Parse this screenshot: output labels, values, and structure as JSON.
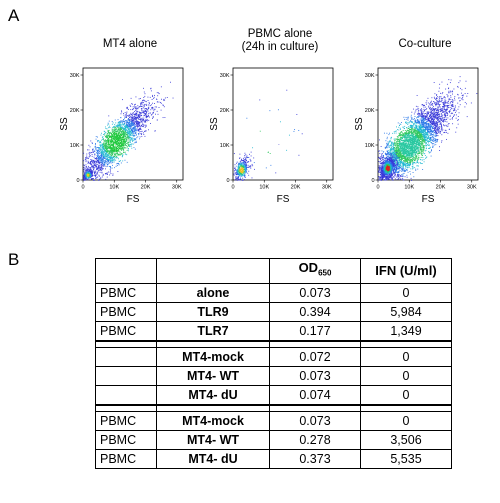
{
  "panelA": {
    "letter": "A",
    "plots": [
      {
        "title_lines": [
          "MT4 alone"
        ],
        "xlabel": "FS",
        "ylabel": "SS"
      },
      {
        "title_lines": [
          "PBMC alone",
          "(24h in culture)"
        ],
        "xlabel": "FS",
        "ylabel": "SS"
      },
      {
        "title_lines": [
          "Co-culture"
        ],
        "xlabel": "FS",
        "ylabel": "SS"
      }
    ]
  },
  "panelB": {
    "letter": "B",
    "header": {
      "col0": "",
      "col1": "",
      "od": "OD",
      "od_sub": "650",
      "ifn": "IFN (U/ml)"
    },
    "groups": [
      [
        {
          "cells": "PBMC",
          "stim": "alone",
          "od": "0.073",
          "ifn": "0"
        },
        {
          "cells": "PBMC",
          "stim": "TLR9",
          "od": "0.394",
          "ifn": "5,984"
        },
        {
          "cells": "PBMC",
          "stim": "TLR7",
          "od": "0.177",
          "ifn": "1,349"
        }
      ],
      [
        {
          "cells": "",
          "stim": "MT4-mock",
          "od": "0.072",
          "ifn": "0"
        },
        {
          "cells": "",
          "stim": "MT4- WT",
          "od": "0.073",
          "ifn": "0"
        },
        {
          "cells": "",
          "stim": "MT4- dU",
          "od": "0.074",
          "ifn": "0"
        }
      ],
      [
        {
          "cells": "PBMC",
          "stim": "MT4-mock",
          "od": "0.073",
          "ifn": "0"
        },
        {
          "cells": "PBMC",
          "stim": "MT4- WT",
          "od": "0.278",
          "ifn": "3,506"
        },
        {
          "cells": "PBMC",
          "stim": "MT4- dU",
          "od": "0.373",
          "ifn": "5,535"
        }
      ]
    ]
  },
  "chart_data": [
    {
      "type": "scatter",
      "title": "MT4 alone",
      "xlabel": "FS",
      "ylabel": "SS",
      "xlim": [
        0,
        32000
      ],
      "ylim": [
        0,
        32000
      ],
      "xticks": [
        "0",
        "10K",
        "20K",
        "30K"
      ],
      "yticks": [
        "0",
        "10K",
        "20K",
        "30K"
      ],
      "populations": [
        {
          "name": "",
          "center": [
            10500,
            11000
          ],
          "spread": [
            5500,
            5500
          ],
          "corr": 0.85,
          "n": 2600,
          "peak_color": "#1ec83c"
        },
        {
          "name": "",
          "center": [
            1500,
            1500
          ],
          "spread": [
            800,
            800
          ],
          "corr": 0.5,
          "n": 250,
          "peak_color": "#e8d020"
        }
      ]
    },
    {
      "type": "scatter",
      "title": "PBMC alone (24h in culture)",
      "xlabel": "FS",
      "ylabel": "SS",
      "xlim": [
        0,
        32000
      ],
      "ylim": [
        0,
        32000
      ],
      "xticks": [
        "0",
        "10K",
        "20K",
        "30K"
      ],
      "yticks": [
        "0",
        "10K",
        "20K",
        "30K"
      ],
      "populations": [
        {
          "name": "",
          "center": [
            2600,
            3000
          ],
          "spread": [
            1300,
            1700
          ],
          "corr": 0.5,
          "n": 420,
          "peak_color": "#f0c020"
        },
        {
          "name": "",
          "center": [
            12000,
            12000
          ],
          "spread": [
            7000,
            7000
          ],
          "corr": 0.3,
          "n": 30,
          "peak_color": "#8a8ae0"
        }
      ]
    },
    {
      "type": "scatter",
      "title": "Co-culture",
      "xlabel": "FS",
      "ylabel": "SS",
      "xlim": [
        0,
        32000
      ],
      "ylim": [
        0,
        32000
      ],
      "xticks": [
        "0",
        "10K",
        "20K",
        "30K"
      ],
      "yticks": [
        "0",
        "10K",
        "20K",
        "30K"
      ],
      "populations": [
        {
          "name": "",
          "center": [
            10000,
            10000
          ],
          "spread": [
            6500,
            6500
          ],
          "corr": 0.85,
          "n": 4500,
          "peak_color": "#28c8a0"
        },
        {
          "name": "",
          "center": [
            3000,
            3500
          ],
          "spread": [
            1200,
            1500
          ],
          "corr": 0.5,
          "n": 700,
          "peak_color": "#e02020"
        }
      ]
    }
  ]
}
